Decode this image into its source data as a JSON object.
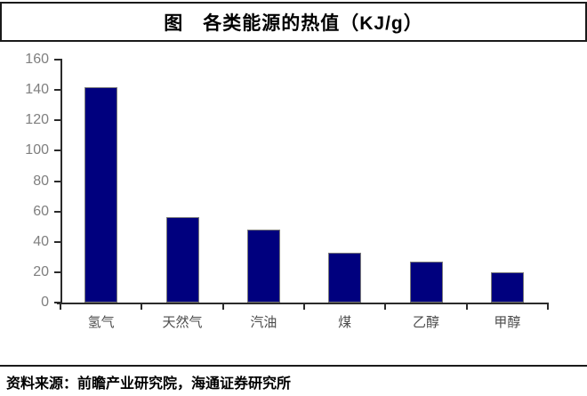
{
  "title": "图　各类能源的热值（KJ/g）",
  "source": {
    "text": "资料来源：前瞻产业研究院，海通证券研究所"
  },
  "colors": {
    "bar_fill": "#00007e",
    "bar_border": "#7a7a7a",
    "axis": "#2b2b2b",
    "y_tick_label": "#7f7f7f",
    "category_label": "#4d4d4d",
    "rule": "#1a1a1a"
  },
  "chart_data": {
    "type": "bar",
    "title": "图　各类能源的热值（KJ/g）",
    "categories": [
      "氢气",
      "天然气",
      "汽油",
      "煤",
      "乙醇",
      "甲醇"
    ],
    "values": [
      142,
      56,
      48,
      33,
      27,
      20
    ],
    "xlabel": "",
    "ylabel": "",
    "ylim": [
      0,
      160
    ],
    "yticks": [
      0,
      20,
      40,
      60,
      80,
      100,
      120,
      140,
      160
    ],
    "grid": false,
    "legend": "none",
    "bar_color": "#00007e"
  }
}
